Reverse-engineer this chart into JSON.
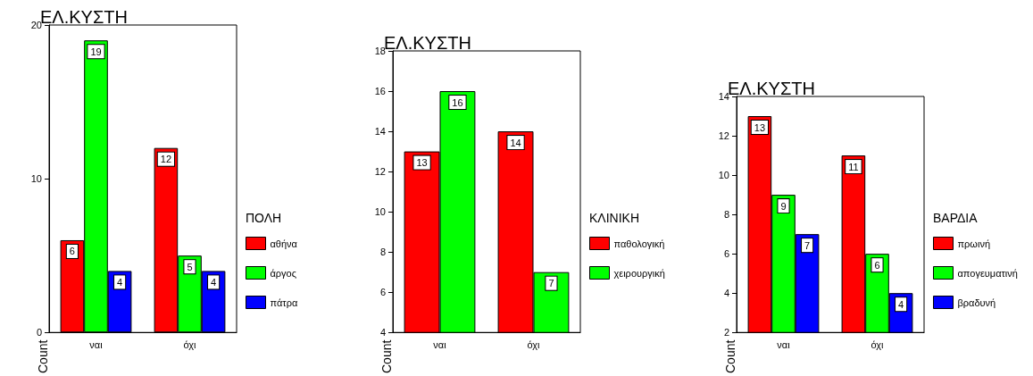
{
  "chart_data": [
    {
      "type": "bar",
      "title": "ΕΛ.ΚΥΣΤΗ",
      "ylabel": "Count",
      "legend_title": "ΠΟΛΗ",
      "categories": [
        "ναι",
        "όχι"
      ],
      "series": [
        {
          "name": "αθήνα",
          "color": "#ff0000",
          "values": [
            6,
            12
          ]
        },
        {
          "name": "άργος",
          "color": "#00ff00",
          "values": [
            19,
            5
          ]
        },
        {
          "name": "πάτρα",
          "color": "#0000ff",
          "values": [
            4,
            4
          ]
        }
      ],
      "ylim": [
        0,
        20
      ],
      "yticks": [
        0,
        10,
        20
      ],
      "data_labels": true,
      "legend": "right",
      "grid": false
    },
    {
      "type": "bar",
      "title": "ΕΛ.ΚΥΣΤΗ",
      "ylabel": "Count",
      "legend_title": "ΚΛΙΝΙΚΗ",
      "categories": [
        "ναι",
        "όχι"
      ],
      "series": [
        {
          "name": "παθολογική",
          "color": "#ff0000",
          "values": [
            13,
            14
          ]
        },
        {
          "name": "χειρουργική",
          "color": "#00ff00",
          "values": [
            16,
            7
          ]
        }
      ],
      "ylim": [
        4,
        18
      ],
      "yticks": [
        4,
        6,
        8,
        10,
        12,
        14,
        16,
        18
      ],
      "data_labels": true,
      "legend": "right",
      "grid": false
    },
    {
      "type": "bar",
      "title": "ΕΛ.ΚΥΣΤΗ",
      "ylabel": "Count",
      "legend_title": "ΒΑΡΔΙΑ",
      "categories": [
        "ναι",
        "όχι"
      ],
      "series": [
        {
          "name": "πρωινή",
          "color": "#ff0000",
          "values": [
            13,
            11
          ]
        },
        {
          "name": "απογευματινή",
          "color": "#00ff00",
          "values": [
            9,
            6
          ]
        },
        {
          "name": "βραδυνή",
          "color": "#0000ff",
          "values": [
            7,
            4
          ]
        }
      ],
      "ylim": [
        2,
        14
      ],
      "yticks": [
        2,
        4,
        6,
        8,
        10,
        12,
        14
      ],
      "data_labels": true,
      "legend": "right",
      "grid": false
    }
  ]
}
